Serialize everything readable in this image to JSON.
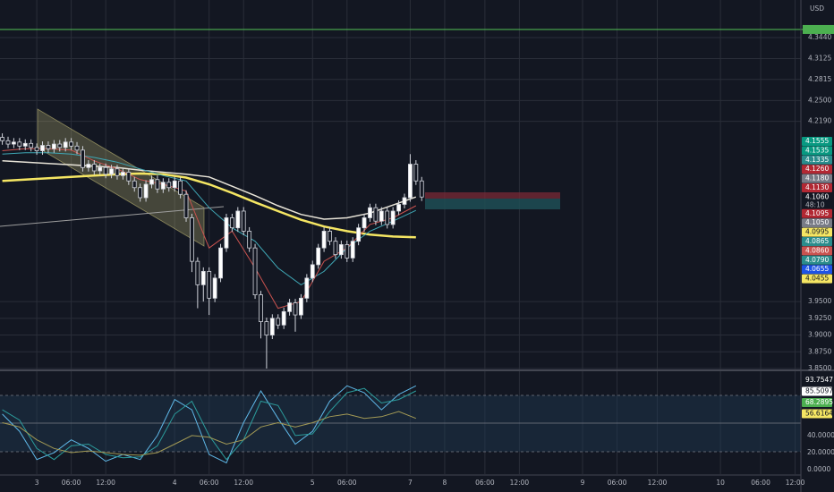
{
  "chart_data": {
    "type": "candlestick",
    "currency": "USD",
    "countdown": "48:10",
    "xlim": [
      -6.4,
      133
    ],
    "xticks": [
      {
        "value": 0,
        "label": "3"
      },
      {
        "value": 6,
        "label": "06:00"
      },
      {
        "value": 12,
        "label": "12:00"
      },
      {
        "value": 24,
        "label": "4"
      },
      {
        "value": 30,
        "label": "06:00"
      },
      {
        "value": 36,
        "label": "12:00"
      },
      {
        "value": 48,
        "label": "5"
      },
      {
        "value": 54,
        "label": "06:00"
      },
      {
        "value": 65,
        "label": "7"
      },
      {
        "value": 71,
        "label": "8"
      },
      {
        "value": 78,
        "label": "06:00"
      },
      {
        "value": 84,
        "label": "12:00"
      },
      {
        "value": 95,
        "label": "9"
      },
      {
        "value": 101,
        "label": "06:00"
      },
      {
        "value": 108,
        "label": "12:00"
      },
      {
        "value": 119,
        "label": "10"
      },
      {
        "value": 126,
        "label": "06:00"
      },
      {
        "value": 132,
        "label": "12:00"
      }
    ],
    "ylim": [
      3.85,
      4.4
    ],
    "yticks": [
      {
        "value": 4.344,
        "label": "4.3440"
      },
      {
        "value": 4.3125,
        "label": "4.3125"
      },
      {
        "value": 4.2815,
        "label": "4.2815"
      },
      {
        "value": 4.25,
        "label": "4.2500"
      },
      {
        "value": 4.219,
        "label": "4.2190"
      },
      {
        "value": 3.95,
        "label": "3.9500"
      },
      {
        "value": 3.925,
        "label": "3.9250"
      },
      {
        "value": 3.9,
        "label": "3.9000"
      },
      {
        "value": 3.875,
        "label": "3.8750"
      },
      {
        "value": 3.85,
        "label": "3.8500"
      }
    ],
    "grid": true,
    "hline": {
      "value": 4.356,
      "color": "#4caf50"
    },
    "candles": {
      "x": [
        -6,
        -5,
        -4,
        -3,
        -2,
        -1,
        0,
        1,
        2,
        3,
        4,
        5,
        6,
        7,
        8,
        9,
        10,
        11,
        12,
        13,
        14,
        15,
        16,
        17,
        18,
        19,
        20,
        21,
        22,
        23,
        24,
        25,
        26,
        27,
        28,
        29,
        30,
        31,
        32,
        33,
        34,
        35,
        36,
        37,
        38,
        39,
        40,
        41,
        42,
        43,
        44,
        45,
        46,
        47,
        48,
        49,
        50,
        51,
        52,
        53,
        54,
        55,
        56,
        57,
        58,
        59,
        60,
        61,
        62,
        63,
        64,
        65,
        66,
        67
      ],
      "open": [
        4.195,
        4.19,
        4.185,
        4.188,
        4.182,
        4.186,
        4.18,
        4.175,
        4.183,
        4.178,
        4.185,
        4.18,
        4.188,
        4.182,
        4.176,
        4.15,
        4.155,
        4.145,
        4.15,
        4.14,
        4.148,
        4.138,
        4.143,
        4.13,
        4.12,
        4.105,
        4.125,
        4.132,
        4.118,
        4.128,
        4.12,
        4.13,
        4.11,
        4.075,
        4.01,
        3.975,
        3.995,
        3.955,
        3.985,
        4.03,
        4.075,
        4.06,
        4.085,
        4.055,
        4.03,
        3.96,
        3.92,
        3.9,
        3.925,
        3.915,
        3.935,
        3.948,
        3.93,
        3.955,
        3.985,
        4.005,
        4.03,
        4.055,
        4.04,
        4.02,
        4.035,
        4.015,
        4.04,
        4.06,
        4.075,
        4.09,
        4.07,
        4.085,
        4.065,
        4.085,
        4.095,
        4.105,
        4.155,
        4.13
      ],
      "high": [
        4.201,
        4.196,
        4.194,
        4.194,
        4.192,
        4.192,
        4.186,
        4.189,
        4.189,
        4.191,
        4.191,
        4.194,
        4.194,
        4.188,
        4.182,
        4.161,
        4.161,
        4.156,
        4.156,
        4.154,
        4.154,
        4.149,
        4.149,
        4.136,
        4.126,
        4.131,
        4.138,
        4.138,
        4.134,
        4.134,
        4.136,
        4.136,
        4.116,
        4.081,
        4.016,
        4.001,
        4.001,
        3.991,
        4.036,
        4.081,
        4.081,
        4.091,
        4.091,
        4.061,
        4.036,
        3.966,
        3.926,
        3.931,
        3.931,
        3.941,
        3.954,
        3.954,
        3.961,
        3.991,
        4.011,
        4.036,
        4.061,
        4.061,
        4.046,
        4.041,
        4.041,
        4.046,
        4.066,
        4.081,
        4.096,
        4.096,
        4.091,
        4.091,
        4.091,
        4.101,
        4.111,
        4.17,
        4.161,
        4.136
      ],
      "low": [
        4.184,
        4.179,
        4.179,
        4.176,
        4.176,
        4.174,
        4.169,
        4.169,
        4.172,
        4.172,
        4.174,
        4.174,
        4.176,
        4.17,
        4.144,
        4.144,
        4.139,
        4.139,
        4.134,
        4.134,
        4.132,
        4.132,
        4.124,
        4.114,
        4.099,
        4.099,
        4.119,
        4.112,
        4.112,
        4.114,
        4.114,
        4.104,
        4.069,
        3.994,
        3.94,
        3.95,
        3.93,
        3.949,
        3.979,
        4.024,
        4.054,
        4.054,
        4.049,
        4.024,
        3.954,
        3.895,
        3.85,
        3.894,
        3.909,
        3.909,
        3.929,
        3.905,
        3.924,
        3.949,
        3.979,
        3.999,
        4.024,
        4.034,
        4.014,
        4.014,
        4.009,
        4.009,
        4.034,
        4.054,
        4.069,
        4.064,
        4.064,
        4.059,
        4.059,
        4.079,
        4.089,
        4.099,
        4.124,
        4.1
      ],
      "close": [
        4.19,
        4.185,
        4.188,
        4.182,
        4.186,
        4.18,
        4.175,
        4.183,
        4.178,
        4.185,
        4.18,
        4.188,
        4.182,
        4.176,
        4.15,
        4.155,
        4.145,
        4.15,
        4.14,
        4.148,
        4.138,
        4.143,
        4.13,
        4.12,
        4.105,
        4.125,
        4.132,
        4.118,
        4.128,
        4.12,
        4.13,
        4.11,
        4.075,
        4.01,
        3.975,
        3.995,
        3.955,
        3.985,
        4.03,
        4.075,
        4.06,
        4.085,
        4.055,
        4.03,
        3.96,
        3.92,
        3.9,
        3.925,
        3.915,
        3.935,
        3.948,
        3.93,
        3.955,
        3.985,
        4.005,
        4.03,
        4.055,
        4.04,
        4.02,
        4.035,
        4.015,
        4.04,
        4.06,
        4.075,
        4.09,
        4.07,
        4.085,
        4.065,
        4.085,
        4.095,
        4.105,
        4.155,
        4.13,
        4.106
      ],
      "up_color": "#ffffff",
      "down_color": "#131722"
    },
    "ma_x": [
      -6,
      -2,
      2,
      6,
      10,
      14,
      18,
      22,
      26,
      30,
      34,
      38,
      42,
      46,
      50,
      54,
      58,
      62,
      66
    ],
    "series": [
      {
        "color": "#e8e4d8",
        "width": 1.5,
        "values": [
          4.16,
          4.158,
          4.156,
          4.154,
          4.152,
          4.15,
          4.146,
          4.143,
          4.14,
          4.136,
          4.122,
          4.108,
          4.093,
          4.08,
          4.073,
          4.075,
          4.082,
          4.094,
          4.106
        ]
      },
      {
        "color": "#f5e663",
        "width": 2.5,
        "values": [
          4.13,
          4.132,
          4.134,
          4.136,
          4.138,
          4.14,
          4.141,
          4.14,
          4.135,
          4.125,
          4.112,
          4.098,
          4.085,
          4.072,
          4.062,
          4.055,
          4.05,
          4.047,
          4.046
        ]
      },
      {
        "color": "#3fa7b5",
        "width": 1,
        "values": [
          4.17,
          4.172,
          4.172,
          4.17,
          4.165,
          4.158,
          4.148,
          4.138,
          4.13,
          4.09,
          4.06,
          4.04,
          4.0,
          3.975,
          3.995,
          4.03,
          4.055,
          4.07,
          4.086
        ]
      },
      {
        "color": "#c9524f",
        "width": 1,
        "values": [
          4.175,
          4.178,
          4.178,
          4.176,
          4.16,
          4.148,
          4.132,
          4.125,
          4.115,
          4.03,
          4.055,
          4.0,
          3.94,
          3.95,
          4.01,
          4.03,
          4.065,
          4.075,
          4.093
        ]
      }
    ],
    "tags": [
      {
        "label": "4.1555",
        "color": "#089981"
      },
      {
        "label": "4.1535",
        "color": "#089981"
      },
      {
        "label": "4.1335",
        "color": "#2b8c8c"
      },
      {
        "label": "4.1260",
        "color": "#b22833"
      },
      {
        "label": "4.1180",
        "color": "#787b86"
      },
      {
        "label": "4.1130",
        "color": "#b22833"
      },
      {
        "label": "4.1060",
        "color": "#131722"
      },
      {
        "label": "4.1095",
        "color": "#b22833"
      },
      {
        "label": "4.1050",
        "color": "#787b86"
      },
      {
        "label": "4.0995",
        "color": "#f5e663"
      },
      {
        "label": "4.0865",
        "color": "#2b8c8c"
      },
      {
        "label": "4.0860",
        "color": "#c9524f"
      },
      {
        "label": "4.0790",
        "color": "#2b8c8c"
      },
      {
        "label": "4.0655",
        "color": "#1e53e5"
      },
      {
        "label": "4.0455",
        "color": "#f5e663"
      }
    ],
    "oscillator": {
      "ylim": [
        -5,
        115
      ],
      "yticks": [
        {
          "value": 40,
          "label": "40.0000"
        },
        {
          "value": 20,
          "label": "20.0000"
        },
        {
          "value": 0,
          "label": "0.0000"
        }
      ],
      "x": [
        -6,
        -3,
        0,
        3,
        6,
        9,
        12,
        15,
        18,
        21,
        24,
        27,
        30,
        33,
        36,
        39,
        42,
        45,
        48,
        51,
        54,
        57,
        60,
        63,
        66
      ],
      "series": [
        {
          "color": "#5fb8e8",
          "values": [
            65,
            45,
            12,
            20,
            35,
            25,
            10,
            18,
            12,
            40,
            82,
            70,
            18,
            8,
            55,
            92,
            60,
            30,
            45,
            80,
            98,
            90,
            70,
            88,
            98
          ]
        },
        {
          "color": "#2b9c9c",
          "values": [
            70,
            58,
            25,
            12,
            28,
            30,
            18,
            14,
            15,
            28,
            65,
            80,
            40,
            12,
            35,
            80,
            75,
            40,
            42,
            68,
            90,
            95,
            78,
            82,
            92
          ]
        },
        {
          "color": "#a39a55",
          "values": [
            55,
            50,
            35,
            25,
            20,
            22,
            20,
            18,
            17,
            20,
            30,
            40,
            38,
            30,
            35,
            50,
            55,
            50,
            55,
            62,
            65,
            60,
            62,
            68,
            60
          ]
        }
      ],
      "tags": [
        {
          "label": "93.7547",
          "color": "#131722"
        },
        {
          "label": "85.5097",
          "color": "#ffffff"
        },
        {
          "label": "68.2895",
          "color": "#4caf50"
        },
        {
          "label": "56.6164",
          "color": "#f5e663"
        }
      ]
    }
  }
}
